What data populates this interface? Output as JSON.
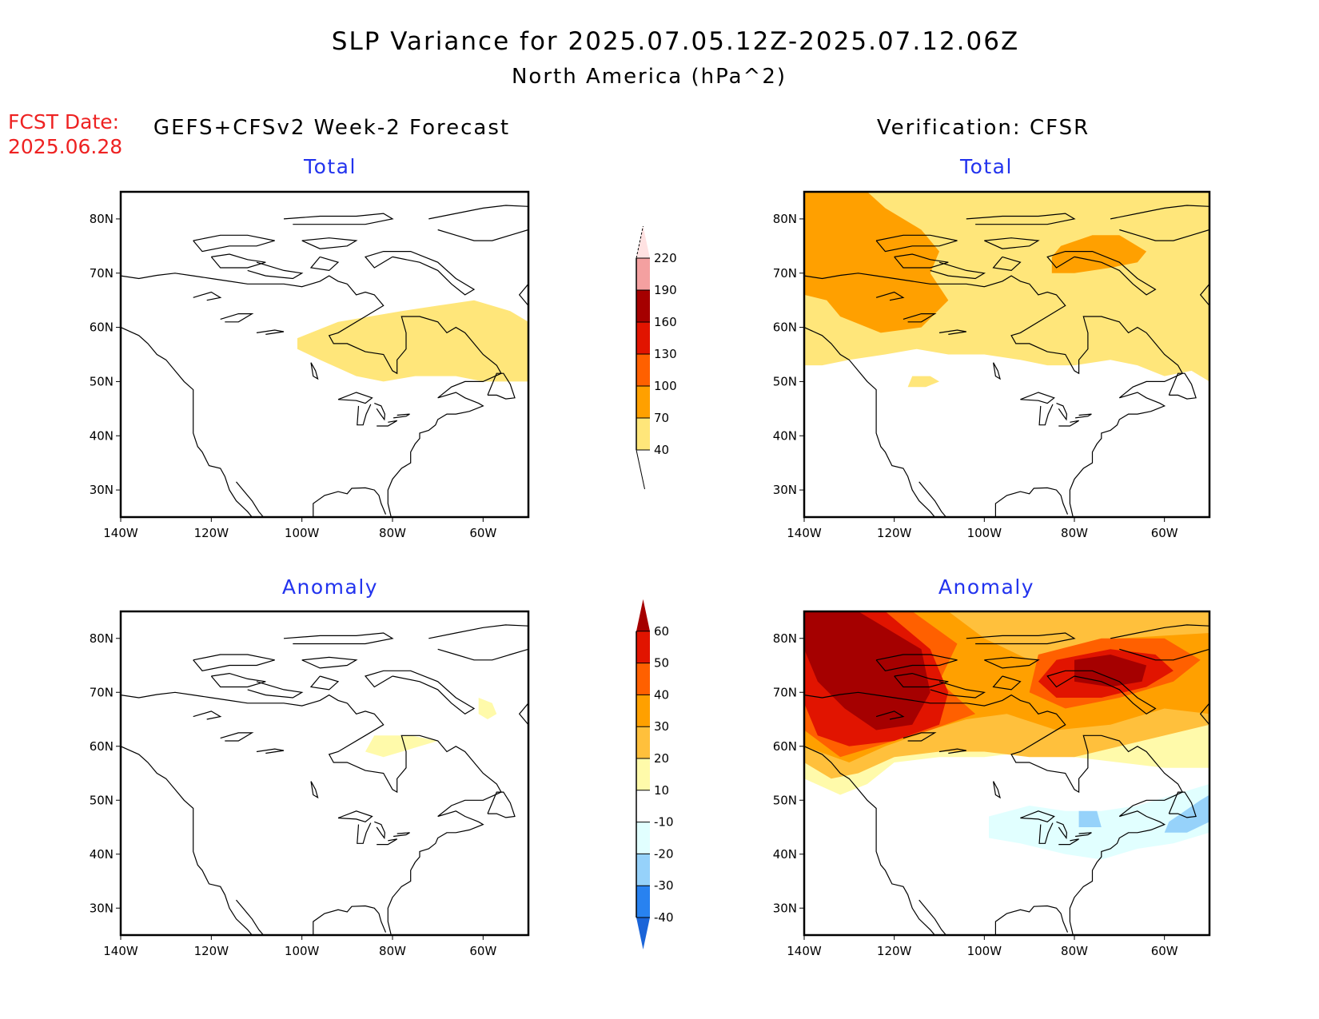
{
  "header": {
    "title": "SLP Variance for 2025.07.05.12Z-2025.07.12.06Z",
    "subtitle": "North America (hPa^2)",
    "fcst_label": "FCST Date:",
    "fcst_date": "2025.06.28",
    "left_column_title": "GEFS+CFSv2 Week-2 Forecast",
    "right_column_title": "Verification: CFSR"
  },
  "colors": {
    "title_blue": "#2233ee",
    "fcst_red": "#ee2222"
  },
  "chart_data": [
    {
      "type": "heatmap",
      "id": "forecast-total",
      "title": "Total",
      "xlabel": "",
      "ylabel": "",
      "x_ticks": [
        "140W",
        "120W",
        "100W",
        "80W",
        "60W"
      ],
      "y_ticks": [
        "30N",
        "40N",
        "50N",
        "60N",
        "70N",
        "80N"
      ],
      "xlim": [
        -140,
        -50
      ],
      "ylim": [
        25,
        85
      ],
      "colorbar": "total",
      "regions": [
        {
          "level": "40-70",
          "desc_lonlat": [
            [
              -101,
              58
            ],
            [
              -92,
              61
            ],
            [
              -78,
              63
            ],
            [
              -70,
              64
            ],
            [
              -62,
              65
            ],
            [
              -54,
              63
            ],
            [
              -50,
              61
            ],
            [
              -50,
              50
            ],
            [
              -60,
              50
            ],
            [
              -66,
              51
            ],
            [
              -75,
              51
            ],
            [
              -82,
              50
            ],
            [
              -88,
              51
            ],
            [
              -96,
              54
            ],
            [
              -101,
              56
            ]
          ]
        }
      ]
    },
    {
      "type": "heatmap",
      "id": "verification-total",
      "title": "Total",
      "xlabel": "",
      "ylabel": "",
      "x_ticks": [
        "140W",
        "120W",
        "100W",
        "80W",
        "60W"
      ],
      "y_ticks": [
        "30N",
        "40N",
        "50N",
        "60N",
        "70N",
        "80N"
      ],
      "xlim": [
        -140,
        -50
      ],
      "ylim": [
        25,
        85
      ],
      "colorbar": "total",
      "regions": [
        {
          "level": "40-70",
          "desc_lonlat": [
            [
              -140,
              85
            ],
            [
              -50,
              85
            ],
            [
              -50,
              50
            ],
            [
              -54,
              52
            ],
            [
              -60,
              51
            ],
            [
              -66,
              53
            ],
            [
              -72,
              54
            ],
            [
              -80,
              53
            ],
            [
              -86,
              53
            ],
            [
              -92,
              54
            ],
            [
              -100,
              55
            ],
            [
              -108,
              55
            ],
            [
              -115,
              56
            ],
            [
              -122,
              55
            ],
            [
              -130,
              54
            ],
            [
              -136,
              53
            ],
            [
              -140,
              53
            ]
          ]
        },
        {
          "level": "40-70",
          "desc_lonlat": [
            [
              -116,
              51
            ],
            [
              -112,
              51
            ],
            [
              -110,
              50
            ],
            [
              -113,
              49
            ],
            [
              -117,
              49
            ]
          ]
        },
        {
          "level": "70-100",
          "desc_lonlat": [
            [
              -140,
              85
            ],
            [
              -126,
              85
            ],
            [
              -122,
              82
            ],
            [
              -114,
              78
            ],
            [
              -110,
              74
            ],
            [
              -112,
              70
            ],
            [
              -108,
              65
            ],
            [
              -114,
              60
            ],
            [
              -123,
              59
            ],
            [
              -132,
              62
            ],
            [
              -135,
              65
            ],
            [
              -140,
              66
            ]
          ]
        },
        {
          "level": "70-100",
          "desc_lonlat": [
            [
              -83,
              75
            ],
            [
              -76,
              77
            ],
            [
              -70,
              77
            ],
            [
              -64,
              74
            ],
            [
              -66,
              72
            ],
            [
              -72,
              71
            ],
            [
              -80,
              70
            ],
            [
              -85,
              70
            ],
            [
              -85,
              73
            ]
          ]
        }
      ]
    },
    {
      "type": "heatmap",
      "id": "forecast-anomaly",
      "title": "Anomaly",
      "xlabel": "",
      "ylabel": "",
      "x_ticks": [
        "140W",
        "120W",
        "100W",
        "80W",
        "60W"
      ],
      "y_ticks": [
        "30N",
        "40N",
        "50N",
        "60N",
        "70N",
        "80N"
      ],
      "xlim": [
        -140,
        -50
      ],
      "ylim": [
        25,
        85
      ],
      "colorbar": "anomaly",
      "regions": [
        {
          "level": "10-20",
          "desc_lonlat": [
            [
              -84,
              62
            ],
            [
              -76,
              62
            ],
            [
              -70,
              61
            ],
            [
              -74,
              60
            ],
            [
              -82,
              58
            ],
            [
              -86,
              59
            ]
          ]
        },
        {
          "level": "10-20",
          "desc_lonlat": [
            [
              -61,
              69
            ],
            [
              -58,
              68
            ],
            [
              -57,
              66
            ],
            [
              -59,
              65
            ],
            [
              -61,
              66
            ]
          ]
        }
      ]
    },
    {
      "type": "heatmap",
      "id": "verification-anomaly",
      "title": "Anomaly",
      "xlabel": "",
      "ylabel": "",
      "x_ticks": [
        "140W",
        "120W",
        "100W",
        "80W",
        "60W"
      ],
      "y_ticks": [
        "30N",
        "40N",
        "50N",
        "60N",
        "70N",
        "80N"
      ],
      "xlim": [
        -140,
        -50
      ],
      "ylim": [
        25,
        85
      ],
      "colorbar": "anomaly",
      "regions": [
        {
          "level": "10-20",
          "desc_lonlat": [
            [
              -140,
              85
            ],
            [
              -50,
              85
            ],
            [
              -50,
              56
            ],
            [
              -60,
              56
            ],
            [
              -70,
              57
            ],
            [
              -80,
              58
            ],
            [
              -90,
              59
            ],
            [
              -100,
              58
            ],
            [
              -110,
              58
            ],
            [
              -120,
              57
            ],
            [
              -126,
              53
            ],
            [
              -132,
              51
            ],
            [
              -140,
              54
            ]
          ]
        },
        {
          "level": "20-30",
          "desc_lonlat": [
            [
              -140,
              85
            ],
            [
              -50,
              85
            ],
            [
              -50,
              64
            ],
            [
              -60,
              62
            ],
            [
              -70,
              60
            ],
            [
              -80,
              58
            ],
            [
              -90,
              58
            ],
            [
              -100,
              59
            ],
            [
              -110,
              59
            ],
            [
              -120,
              58
            ],
            [
              -128,
              55
            ],
            [
              -134,
              54
            ],
            [
              -140,
              57
            ]
          ]
        },
        {
          "level": "30-40",
          "desc_lonlat": [
            [
              -140,
              85
            ],
            [
              -108,
              85
            ],
            [
              -100,
              80
            ],
            [
              -90,
              76
            ],
            [
              -80,
              77
            ],
            [
              -70,
              80
            ],
            [
              -50,
              81
            ],
            [
              -50,
              66
            ],
            [
              -60,
              67
            ],
            [
              -72,
              64
            ],
            [
              -84,
              63
            ],
            [
              -95,
              66
            ],
            [
              -104,
              65
            ],
            [
              -112,
              63
            ],
            [
              -122,
              60
            ],
            [
              -130,
              57
            ],
            [
              -140,
              60
            ]
          ]
        },
        {
          "level": "40-50",
          "desc_lonlat": [
            [
              -140,
              85
            ],
            [
              -116,
              85
            ],
            [
              -106,
              79
            ],
            [
              -110,
              72
            ],
            [
              -102,
              66
            ],
            [
              -112,
              63
            ],
            [
              -124,
              60
            ],
            [
              -132,
              58
            ],
            [
              -140,
              63
            ]
          ]
        },
        {
          "level": "40-50",
          "desc_lonlat": [
            [
              -88,
              77
            ],
            [
              -74,
              80
            ],
            [
              -60,
              80
            ],
            [
              -52,
              76
            ],
            [
              -58,
              72
            ],
            [
              -70,
              69
            ],
            [
              -82,
              67
            ],
            [
              -90,
              70
            ]
          ]
        },
        {
          "level": "50-60",
          "desc_lonlat": [
            [
              -140,
              85
            ],
            [
              -122,
              85
            ],
            [
              -112,
              78
            ],
            [
              -108,
              70
            ],
            [
              -110,
              64
            ],
            [
              -120,
              61
            ],
            [
              -130,
              60
            ],
            [
              -137,
              62
            ],
            [
              -140,
              68
            ]
          ]
        },
        {
          "level": "50-60",
          "desc_lonlat": [
            [
              -84,
              76
            ],
            [
              -72,
              78
            ],
            [
              -62,
              77
            ],
            [
              -58,
              74
            ],
            [
              -64,
              71
            ],
            [
              -74,
              69
            ],
            [
              -84,
              69
            ],
            [
              -88,
              72
            ]
          ]
        },
        {
          "level": ">60",
          "desc_lonlat": [
            [
              -140,
              85
            ],
            [
              -128,
              85
            ],
            [
              -114,
              78
            ],
            [
              -112,
              70
            ],
            [
              -116,
              64
            ],
            [
              -124,
              63
            ],
            [
              -131,
              67
            ],
            [
              -137,
              72
            ],
            [
              -140,
              78
            ]
          ]
        },
        {
          "level": ">60",
          "desc_lonlat": [
            [
              -80,
              76
            ],
            [
              -72,
              77
            ],
            [
              -64,
              75
            ],
            [
              -65,
              72
            ],
            [
              -72,
              71
            ],
            [
              -80,
              72
            ]
          ]
        },
        {
          "level": "-20--10",
          "desc_lonlat": [
            [
              -99,
              47
            ],
            [
              -90,
              49
            ],
            [
              -82,
              48
            ],
            [
              -74,
              48
            ],
            [
              -66,
              49
            ],
            [
              -58,
              51
            ],
            [
              -50,
              53
            ],
            [
              -50,
              44
            ],
            [
              -58,
              42
            ],
            [
              -66,
              41
            ],
            [
              -74,
              39
            ],
            [
              -82,
              40
            ],
            [
              -92,
              42
            ],
            [
              -99,
              43
            ]
          ]
        },
        {
          "level": "-30--20",
          "desc_lonlat": [
            [
              -79,
              48
            ],
            [
              -75,
              48
            ],
            [
              -74,
              45
            ],
            [
              -79,
              45
            ]
          ]
        },
        {
          "level": "-30--20",
          "desc_lonlat": [
            [
              -59,
              46
            ],
            [
              -52,
              50
            ],
            [
              -50,
              51
            ],
            [
              -50,
              46
            ],
            [
              -55,
              44
            ],
            [
              -60,
              44
            ]
          ]
        }
      ]
    }
  ],
  "colorbars": {
    "total": {
      "labels": [
        "40",
        "70",
        "100",
        "130",
        "160",
        "190",
        "220"
      ],
      "colors": [
        "#ffe67a",
        "#ffa000",
        "#ff6000",
        "#e11400",
        "#a50000",
        "#f4a0a0",
        "#ffe2e2"
      ]
    },
    "anomaly": {
      "labels": [
        "-40",
        "-30",
        "-20",
        "-10",
        "10",
        "20",
        "30",
        "40",
        "50",
        "60"
      ],
      "colors": [
        "#1a64d8",
        "#2882f0",
        "#96d2fa",
        "#e1ffff",
        "#ffffff",
        "#fffaaa",
        "#ffc03c",
        "#ffa000",
        "#ff6000",
        "#e11400",
        "#a50000"
      ]
    }
  }
}
